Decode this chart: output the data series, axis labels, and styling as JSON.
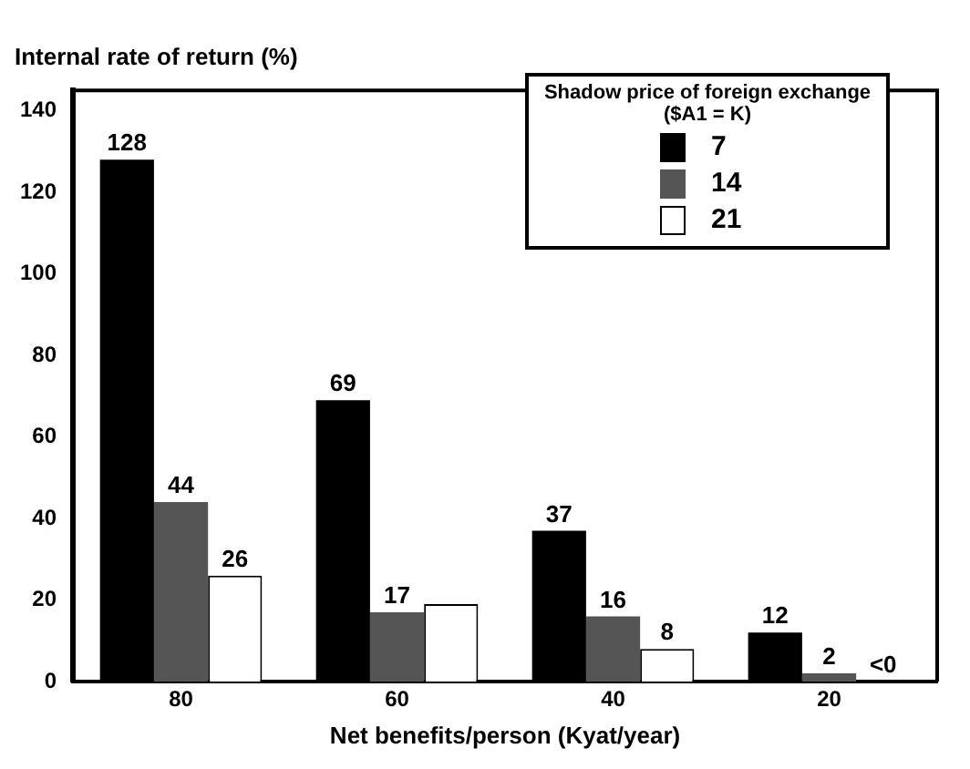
{
  "chart_data": {
    "type": "bar",
    "ylabel": "Internal rate of return (%)",
    "xlabel": "Net benefits/person (Kyat/year)",
    "legend_title": "Shadow price of foreign exchange ($A1 = K)",
    "legend": "top right",
    "categories": [
      "80",
      "60",
      "40",
      "20"
    ],
    "series": [
      {
        "name": "7",
        "color": "#000000",
        "values": [
          128,
          69,
          37,
          12
        ],
        "value_labels": [
          "128",
          "69",
          "37",
          "12"
        ]
      },
      {
        "name": "14",
        "color": "#555555",
        "values": [
          44,
          17,
          16,
          2
        ],
        "value_labels": [
          "44",
          "17",
          "16",
          "2"
        ]
      },
      {
        "name": "21",
        "color": "#ffffff",
        "values": [
          26,
          19,
          8,
          null
        ],
        "value_labels": [
          "26",
          null,
          "8",
          "<0"
        ]
      }
    ],
    "ylim": [
      0,
      145
    ],
    "yticks": [
      0,
      20,
      40,
      60,
      80,
      100,
      120,
      140
    ],
    "grid": false
  }
}
